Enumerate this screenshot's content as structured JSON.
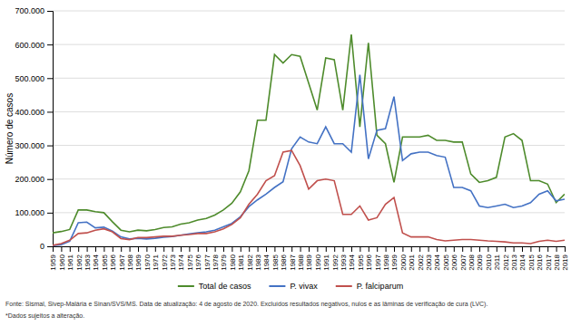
{
  "chart_data": {
    "type": "line",
    "ylabel": "Número de casos",
    "x": [
      1959,
      1960,
      1961,
      1962,
      1963,
      1964,
      1965,
      1966,
      1967,
      1968,
      1969,
      1970,
      1971,
      1972,
      1973,
      1974,
      1975,
      1976,
      1977,
      1978,
      1979,
      1980,
      1981,
      1982,
      1983,
      1984,
      1985,
      1986,
      1987,
      1988,
      1989,
      1990,
      1991,
      1992,
      1993,
      1994,
      1995,
      1996,
      1997,
      1998,
      1999,
      2000,
      2001,
      2002,
      2003,
      2004,
      2005,
      2006,
      2007,
      2008,
      2009,
      2010,
      2011,
      2012,
      2013,
      2014,
      2015,
      2016,
      2017,
      2018,
      2019
    ],
    "series": [
      {
        "name": "Total de casos",
        "color": "#4e8b2c",
        "values": [
          40000,
          44000,
          50000,
          108000,
          108000,
          103000,
          100000,
          73000,
          48000,
          43000,
          48000,
          46000,
          50000,
          56000,
          58000,
          66000,
          70000,
          78000,
          83000,
          93000,
          108000,
          128000,
          162000,
          225000,
          375000,
          375000,
          570000,
          545000,
          570000,
          565000,
          485000,
          405000,
          560000,
          555000,
          405000,
          630000,
          355000,
          605000,
          330000,
          305000,
          190000,
          325000,
          325000,
          325000,
          330000,
          315000,
          315000,
          310000,
          310000,
          215000,
          190000,
          195000,
          205000,
          325000,
          335000,
          315000,
          195000,
          195000,
          185000,
          130000,
          155000
        ]
      },
      {
        "name": "P. vivax",
        "color": "#4472c4",
        "values": [
          2000,
          5000,
          15000,
          70000,
          72000,
          55000,
          57000,
          45000,
          28000,
          22000,
          24000,
          22000,
          24000,
          27000,
          29000,
          33000,
          37000,
          40000,
          43000,
          48000,
          58000,
          68000,
          88000,
          118000,
          138000,
          155000,
          175000,
          192000,
          290000,
          325000,
          310000,
          305000,
          355000,
          305000,
          305000,
          280000,
          510000,
          260000,
          345000,
          350000,
          445000,
          255000,
          275000,
          280000,
          280000,
          270000,
          265000,
          175000,
          175000,
          165000,
          120000,
          115000,
          120000,
          125000,
          115000,
          120000,
          130000,
          155000,
          165000,
          135000,
          140000
        ]
      },
      {
        "name": "P. falciparum",
        "color": "#c0504d",
        "values": [
          3000,
          8000,
          18000,
          38000,
          40000,
          48000,
          52000,
          43000,
          23000,
          20000,
          26000,
          26000,
          28000,
          30000,
          30000,
          33000,
          35000,
          38000,
          38000,
          43000,
          52000,
          65000,
          85000,
          125000,
          155000,
          195000,
          210000,
          280000,
          285000,
          240000,
          170000,
          195000,
          200000,
          195000,
          95000,
          95000,
          120000,
          78000,
          85000,
          125000,
          145000,
          40000,
          28000,
          28000,
          28000,
          20000,
          16000,
          18000,
          20000,
          20000,
          18000,
          16000,
          15000,
          13000,
          10000,
          10000,
          8000,
          15000,
          18000,
          15000,
          18000
        ]
      }
    ],
    "xlim": [
      1959,
      2019
    ],
    "xticks": [
      1959,
      1960,
      1961,
      1962,
      1963,
      1964,
      1965,
      1966,
      1967,
      1968,
      1969,
      1970,
      1971,
      1972,
      1973,
      1974,
      1975,
      1976,
      1977,
      1978,
      1979,
      1980,
      1981,
      1982,
      1983,
      1984,
      1985,
      1986,
      1987,
      1988,
      1989,
      1990,
      1991,
      1992,
      1993,
      1994,
      1995,
      1996,
      1997,
      1998,
      1999,
      2000,
      2001,
      2002,
      2003,
      2004,
      2005,
      2006,
      2007,
      2008,
      2009,
      2010,
      2011,
      2012,
      2013,
      2014,
      2015,
      2016,
      2017,
      2018,
      2019
    ],
    "ylim": [
      0,
      700000
    ],
    "yticks": [
      0,
      {
        "value": 100000,
        "label": "100.000"
      },
      {
        "value": 200000,
        "label": "200.000"
      },
      {
        "value": 300000,
        "label": "300.000"
      },
      {
        "value": 400000,
        "label": "400.000"
      },
      {
        "value": 500000,
        "label": "500.000"
      },
      {
        "value": 600000,
        "label": "600.000"
      },
      {
        "value": 700000,
        "label": "700.000"
      }
    ],
    "grid": true,
    "legend": "bottom",
    "annotations": [
      "Fonte: Sismal, Sivep-Malária e Sinan/SVS/MS. Data de atualização: 4 de agosto de 2020. Excluídos resultados negativos, nulos e as lâminas de verificação de cura (LVC).",
      "*Dados sujeitos a alteração."
    ]
  }
}
